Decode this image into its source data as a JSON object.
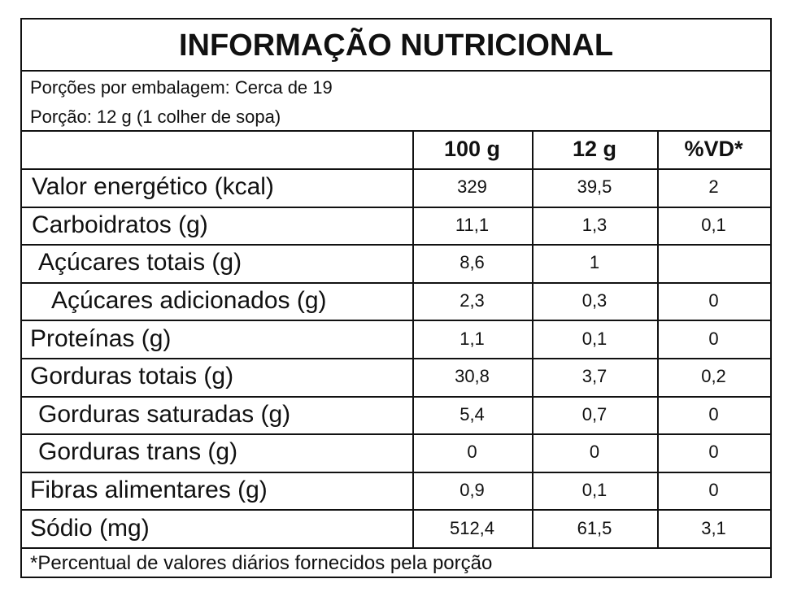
{
  "header": {
    "title": "INFORMAÇÃO NUTRICIONAL",
    "servings_per_package": "Porções por embalagem: Cerca de 19",
    "serving_size": "Porção: 12 g (1 colher de sopa)"
  },
  "table": {
    "columns": [
      "100 g",
      "12 g",
      "%VD*"
    ],
    "rows": [
      [
        "Valor energético (kcal)",
        "329",
        "39,5",
        "2"
      ],
      [
        "Carboidratos (g)",
        "11,1",
        "1,3",
        "0,1"
      ],
      [
        "Açúcares totais (g)",
        "8,6",
        "1",
        null
      ],
      [
        "Açúcares adicionados (g)",
        "2,3",
        "0,3",
        "0"
      ],
      [
        "Proteínas (g)",
        "1,1",
        "0,1",
        "0"
      ],
      [
        "Gorduras totais (g)",
        "30,8",
        "3,7",
        "0,2"
      ],
      [
        "Gorduras saturadas (g)",
        "5,4",
        "0,7",
        "0"
      ],
      [
        "Gorduras trans (g)",
        "0",
        "0",
        "0"
      ],
      [
        "Fibras alimentares (g)",
        "0,9",
        "0,1",
        "0"
      ],
      [
        "Sódio (mg)",
        "512,4",
        "61,5",
        "3,1"
      ]
    ]
  },
  "footnote": "*Percentual de valores diários fornecidos pela porção"
}
